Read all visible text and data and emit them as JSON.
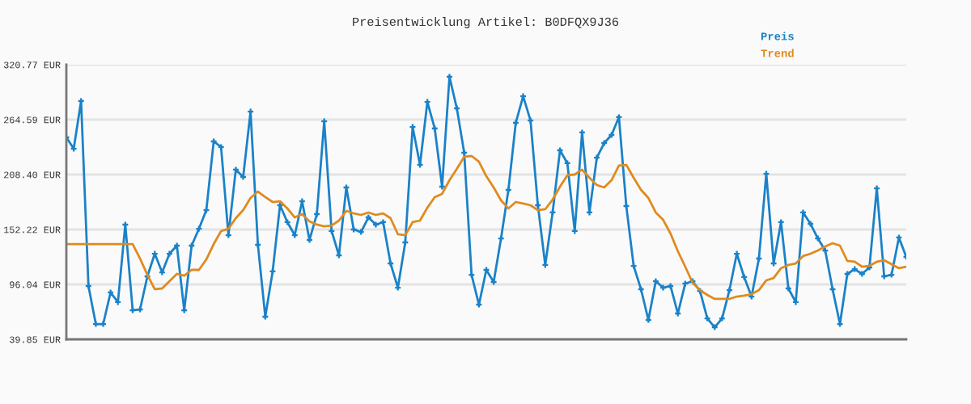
{
  "chart_data": {
    "type": "line",
    "title": "Preisentwicklung Artikel: B0DFQX9J36",
    "categories": [
      null,
      null,
      null,
      null,
      null,
      null,
      null,
      null,
      null,
      null,
      null,
      null,
      null,
      null,
      null,
      null,
      null,
      null,
      null,
      null,
      null,
      null,
      null,
      null,
      null,
      null,
      null,
      null,
      null,
      null,
      null,
      null,
      null,
      null,
      null,
      null,
      null,
      null,
      null,
      null,
      null,
      null,
      null,
      null,
      null,
      null,
      null,
      null,
      null,
      null,
      null,
      null,
      null,
      null,
      null,
      null,
      null,
      null,
      null,
      null,
      null,
      null,
      null,
      null,
      null,
      null,
      null,
      null,
      null,
      null,
      null,
      null,
      null,
      null,
      null,
      null,
      null,
      null,
      null,
      null,
      null,
      null,
      null,
      null,
      null,
      null,
      null,
      null,
      null,
      null,
      null,
      null,
      null,
      null,
      null,
      null,
      null,
      null,
      null,
      null,
      null,
      null,
      null,
      null,
      null,
      null,
      null,
      null,
      null,
      null,
      null,
      null,
      null,
      null,
      null
    ],
    "series": [
      {
        "name": "Preis",
        "color": "#1a82c8",
        "marker": "cross",
        "values": [
          246.4,
          234.8,
          283.6,
          94.4,
          55.5,
          55.5,
          87.8,
          77.9,
          157.2,
          69.6,
          70.4,
          104.3,
          127.4,
          108.4,
          127.4,
          135.7,
          69.6,
          135.7,
          153.0,
          172.0,
          242.3,
          236.5,
          146.4,
          213.4,
          205.9,
          272.8,
          136.5,
          63.0,
          109.3,
          177.0,
          159.7,
          146.4,
          181.1,
          141.5,
          167.9,
          262.9,
          150.6,
          125.8,
          195.2,
          152.2,
          149.7,
          164.6,
          157.2,
          159.7,
          117.5,
          92.7,
          139.0,
          257.1,
          218.3,
          282.7,
          255.5,
          196.0,
          308.4,
          276.1,
          230.7,
          105.9,
          75.4,
          110.9,
          98.5,
          143.1,
          192.7,
          261.3,
          288.5,
          263.7,
          177.0,
          115.9,
          169.6,
          233.2,
          220.0,
          150.6,
          251.4,
          169.6,
          225.7,
          240.6,
          248.9,
          267.1,
          176.2,
          115.0,
          91.1,
          59.7,
          99.3,
          92.7,
          94.4,
          66.3,
          96.9,
          99.3,
          89.4,
          61.3,
          52.2,
          61.3,
          90.2,
          127.4,
          103.5,
          83.6,
          122.5,
          209.2,
          117.5,
          159.7,
          91.9,
          77.9,
          169.6,
          158.0,
          143.1,
          130.7,
          91.1,
          55.5,
          106.8,
          111.7,
          106.8,
          113.4,
          194.3,
          104.3,
          105.9,
          144.0,
          124.1
        ]
      },
      {
        "name": "Trend",
        "color": "#e08a1e",
        "marker": "none",
        "values": [
          137.3,
          137.3,
          137.3,
          137.3,
          137.3,
          137.3,
          137.3,
          137.3,
          137.3,
          137.3,
          122.5,
          105.9,
          91.1,
          91.9,
          99.3,
          106.8,
          105.1,
          110.9,
          110.9,
          121.6,
          137.3,
          150.6,
          153.0,
          163.8,
          172.0,
          184.4,
          191.0,
          185.3,
          180.3,
          181.1,
          173.7,
          164.6,
          167.9,
          160.5,
          157.2,
          155.5,
          156.3,
          161.3,
          171.2,
          168.7,
          167.1,
          169.6,
          167.1,
          168.7,
          163.8,
          147.3,
          146.4,
          159.7,
          161.3,
          174.5,
          185.3,
          188.6,
          202.6,
          214.2,
          226.6,
          227.4,
          221.6,
          206.7,
          195.2,
          182.0,
          173.7,
          180.3,
          178.7,
          177.0,
          172.0,
          172.9,
          182.8,
          196.0,
          207.6,
          208.4,
          213.4,
          205.1,
          197.7,
          195.2,
          202.6,
          217.5,
          218.3,
          205.1,
          192.7,
          184.4,
          169.6,
          162.1,
          148.1,
          129.9,
          114.2,
          97.7,
          90.2,
          85.3,
          81.2,
          81.2,
          81.2,
          83.6,
          84.5,
          86.1,
          90.2,
          100.2,
          102.6,
          112.6,
          115.9,
          117.5,
          125.0,
          127.4,
          130.7,
          134.9,
          138.2,
          135.7,
          120.0,
          119.2,
          114.2,
          115.0,
          119.2,
          120.8,
          116.7,
          112.6,
          114.2
        ]
      }
    ],
    "ylim": [
      39.85,
      320.77
    ],
    "yticks": [
      {
        "value": 39.85,
        "label": "39.85 EUR"
      },
      {
        "value": 96.04,
        "label": "96.04 EUR"
      },
      {
        "value": 152.22,
        "label": "152.22 EUR"
      },
      {
        "value": 208.4,
        "label": "208.40 EUR"
      },
      {
        "value": 264.59,
        "label": "264.59 EUR"
      },
      {
        "value": 320.77,
        "label": "320.77 EUR"
      }
    ],
    "grid": "y",
    "legend": "top right",
    "tick_labels": "y",
    "line_style": "solid"
  }
}
